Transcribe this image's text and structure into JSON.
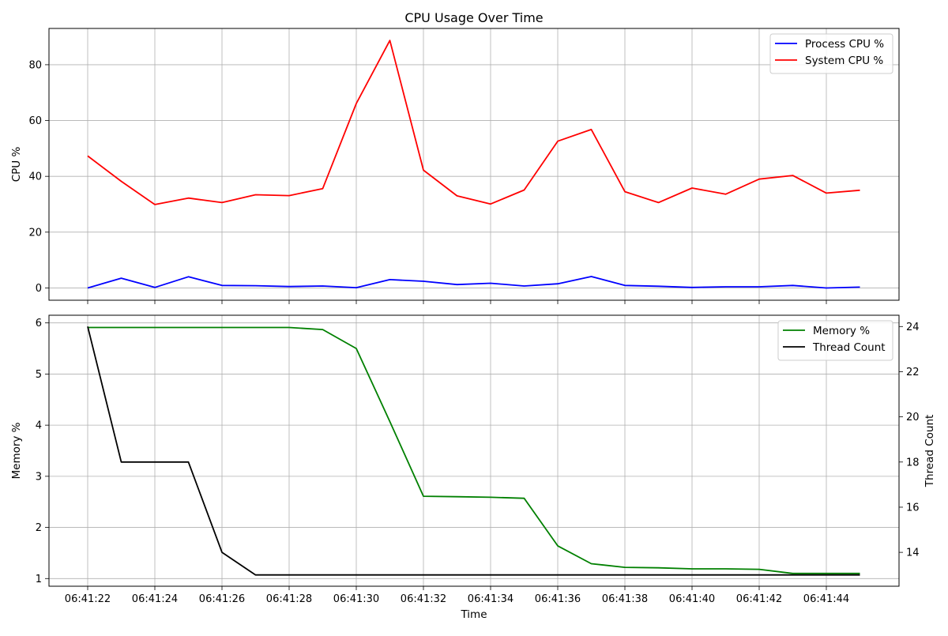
{
  "figure": {
    "title": "CPU Usage Over Time"
  },
  "chart_data": [
    {
      "type": "line",
      "title": "CPU Usage Over Time",
      "xlabel": "",
      "ylabel": "CPU %",
      "x": [
        "06:41:22",
        "06:41:23",
        "06:41:24",
        "06:41:25",
        "06:41:26",
        "06:41:27",
        "06:41:28",
        "06:41:29",
        "06:41:30",
        "06:41:31",
        "06:41:32",
        "06:41:33",
        "06:41:34",
        "06:41:35",
        "06:41:36",
        "06:41:37",
        "06:41:38",
        "06:41:39",
        "06:41:40",
        "06:41:41",
        "06:41:42",
        "06:41:43",
        "06:41:44",
        "06:41:45"
      ],
      "x_ticks": [
        "06:41:22",
        "06:41:24",
        "06:41:26",
        "06:41:28",
        "06:41:30",
        "06:41:32",
        "06:41:34",
        "06:41:36",
        "06:41:38",
        "06:41:40",
        "06:41:42",
        "06:41:44"
      ],
      "ylim": [
        -4.4,
        93
      ],
      "y_ticks": [
        0,
        20,
        40,
        60,
        80
      ],
      "grid": true,
      "legend_position": "top-right",
      "series": [
        {
          "name": "Process CPU %",
          "color": "#0000ff",
          "values": [
            0.0,
            3.5,
            0.2,
            4.0,
            0.9,
            0.8,
            0.5,
            0.7,
            0.1,
            3.0,
            2.4,
            1.2,
            1.7,
            0.7,
            1.5,
            4.1,
            0.9,
            0.6,
            0.2,
            0.4,
            0.4,
            0.9,
            0.0,
            0.3
          ]
        },
        {
          "name": "System CPU %",
          "color": "#ff0000",
          "values": [
            47.3,
            38.2,
            29.9,
            32.2,
            30.6,
            33.4,
            33.1,
            35.6,
            66.1,
            88.7,
            42.2,
            33.0,
            30.1,
            35.1,
            52.6,
            56.8,
            34.5,
            30.6,
            35.8,
            33.6,
            39.0,
            40.3,
            34.0,
            35.0
          ]
        }
      ]
    },
    {
      "type": "line",
      "title": "",
      "xlabel": "Time",
      "ylabel": "Memory %",
      "ylabel_right": "Thread Count",
      "x": [
        "06:41:22",
        "06:41:23",
        "06:41:24",
        "06:41:25",
        "06:41:26",
        "06:41:27",
        "06:41:28",
        "06:41:29",
        "06:41:30",
        "06:41:31",
        "06:41:32",
        "06:41:33",
        "06:41:34",
        "06:41:35",
        "06:41:36",
        "06:41:37",
        "06:41:38",
        "06:41:39",
        "06:41:40",
        "06:41:41",
        "06:41:42",
        "06:41:43",
        "06:41:44",
        "06:41:45"
      ],
      "x_ticks": [
        "06:41:22",
        "06:41:24",
        "06:41:26",
        "06:41:28",
        "06:41:30",
        "06:41:32",
        "06:41:34",
        "06:41:36",
        "06:41:38",
        "06:41:40",
        "06:41:42",
        "06:41:44"
      ],
      "ylim": [
        0.85,
        6.15
      ],
      "ylim_right": [
        12.5,
        24.5
      ],
      "y_ticks": [
        1,
        2,
        3,
        4,
        5,
        6
      ],
      "y_ticks_right": [
        14,
        16,
        18,
        20,
        22,
        24
      ],
      "grid": true,
      "legend_position": "top-right",
      "series": [
        {
          "name": "Memory %",
          "color": "#008000",
          "axis": "left",
          "values": [
            5.91,
            5.91,
            5.91,
            5.91,
            5.91,
            5.91,
            5.91,
            5.87,
            5.5,
            4.07,
            2.61,
            2.6,
            2.59,
            2.57,
            1.64,
            1.29,
            1.22,
            1.21,
            1.19,
            1.19,
            1.18,
            1.1,
            1.1,
            1.1
          ]
        },
        {
          "name": "Thread Count",
          "color": "#000000",
          "axis": "right",
          "values": [
            24,
            18,
            18,
            18,
            14,
            13,
            13,
            13,
            13,
            13,
            13,
            13,
            13,
            13,
            13,
            13,
            13,
            13,
            13,
            13,
            13,
            13,
            13,
            13
          ]
        }
      ]
    }
  ]
}
